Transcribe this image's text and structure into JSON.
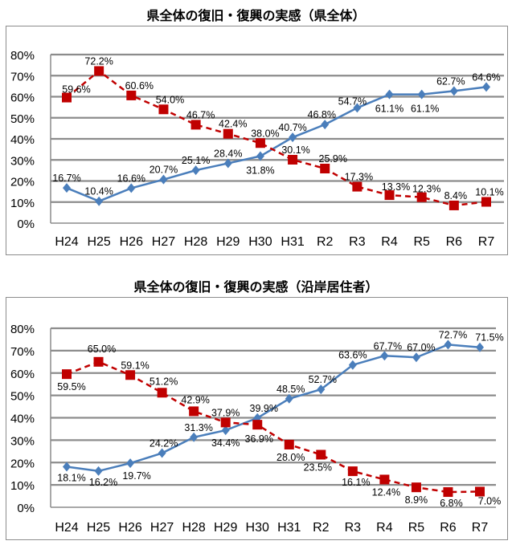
{
  "chart_data": [
    {
      "type": "line",
      "title": "県全体の復旧・復興の実感（県全体）",
      "categories": [
        "H24",
        "H25",
        "H26",
        "H27",
        "H28",
        "H29",
        "H30",
        "H31",
        "R2",
        "R3",
        "R4",
        "R5",
        "R6",
        "R7"
      ],
      "yticks": [
        "0%",
        "10%",
        "20%",
        "30%",
        "40%",
        "50%",
        "60%",
        "70%",
        "80%"
      ],
      "ylim": [
        0,
        80
      ],
      "grid": true,
      "series": [
        {
          "color": "#4a7ebb",
          "style": "solid",
          "marker": "diamond",
          "values": [
            16.7,
            10.4,
            16.6,
            20.7,
            25.1,
            28.4,
            31.8,
            40.7,
            46.8,
            54.7,
            61.1,
            61.1,
            62.7,
            64.6
          ],
          "labels": [
            "16.7%",
            "10.4%",
            "16.6%",
            "20.7%",
            "25.1%",
            "28.4%",
            "31.8%",
            "40.7%",
            "46.8%",
            "54.7%",
            "61.1%",
            "61.1%",
            "62.7%",
            "64.6%"
          ]
        },
        {
          "color": "#c00000",
          "style": "dashed",
          "marker": "square",
          "values": [
            59.6,
            72.2,
            60.6,
            54.0,
            46.7,
            42.4,
            38.0,
            30.1,
            25.9,
            17.3,
            13.3,
            12.3,
            8.4,
            10.1
          ],
          "labels": [
            "59.6%",
            "72.2%",
            "60.6%",
            "54.0%",
            "46.7%",
            "42.4%",
            "38.0%",
            "30.1%",
            "25.9%",
            "17.3%",
            "13.3%",
            "12.3%",
            "8.4%",
            "10.1%"
          ]
        }
      ]
    },
    {
      "type": "line",
      "title": "県全体の復旧・復興の実感（沿岸居住者）",
      "categories": [
        "H24",
        "H25",
        "H26",
        "H27",
        "H28",
        "H29",
        "H30",
        "H31",
        "R2",
        "R3",
        "R4",
        "R5",
        "R6",
        "R7"
      ],
      "yticks": [
        "0%",
        "10%",
        "20%",
        "30%",
        "40%",
        "50%",
        "60%",
        "70%",
        "80%"
      ],
      "ylim": [
        0,
        80
      ],
      "grid": true,
      "series": [
        {
          "color": "#4a7ebb",
          "style": "solid",
          "marker": "diamond",
          "values": [
            18.1,
            16.2,
            19.7,
            24.2,
            31.3,
            34.4,
            39.9,
            48.5,
            52.7,
            63.6,
            67.7,
            67.0,
            72.7,
            71.5
          ],
          "labels": [
            "18.1%",
            "16.2%",
            "19.7%",
            "24.2%",
            "31.3%",
            "34.4%",
            "39.9%",
            "48.5%",
            "52.7%",
            "63.6%",
            "67.7%",
            "67.0%",
            "72.7%",
            "71.5%"
          ]
        },
        {
          "color": "#c00000",
          "style": "dashed",
          "marker": "square",
          "values": [
            59.5,
            65.0,
            59.1,
            51.2,
            42.9,
            37.9,
            36.9,
            28.0,
            23.5,
            16.1,
            12.4,
            8.9,
            6.8,
            7.0
          ],
          "labels": [
            "59.5%",
            "65.0%",
            "59.1%",
            "51.2%",
            "42.9%",
            "37.9%",
            "36.9%",
            "28.0%",
            "23.5%",
            "16.1%",
            "12.4%",
            "8.9%",
            "6.8%",
            "7.0%"
          ]
        }
      ]
    }
  ]
}
